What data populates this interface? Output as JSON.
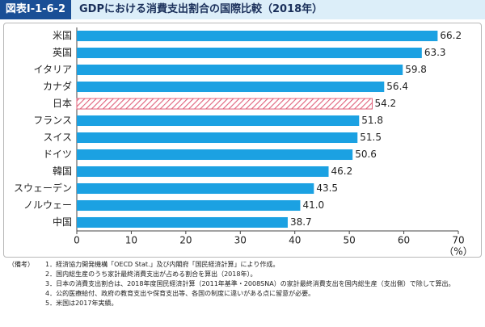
{
  "chart_data": {
    "type": "hbar",
    "figure_label": "図表Ⅰ-1-6-2",
    "title": "GDPにおける消費支出割合の国際比較（2018年）",
    "categories": [
      "米国",
      "英国",
      "イタリア",
      "カナダ",
      "日本",
      "フランス",
      "スイス",
      "ドイツ",
      "韓国",
      "スウェーデン",
      "ノルウェー",
      "中国"
    ],
    "values": [
      66.2,
      63.3,
      59.8,
      56.4,
      54.2,
      51.8,
      51.5,
      50.6,
      46.2,
      43.5,
      41.0,
      38.7
    ],
    "value_labels": [
      "66.2",
      "63.3",
      "59.8",
      "56.4",
      "54.2",
      "51.8",
      "51.5",
      "50.6",
      "46.2",
      "43.5",
      "41.0",
      "38.7"
    ],
    "color": "#1ba1e2",
    "highlight_index": 4,
    "highlight_color": "#e0607a",
    "xlim": [
      0,
      70
    ],
    "xticks": [
      0,
      10,
      20,
      30,
      40,
      50,
      60,
      70
    ],
    "xlabel": "（%）",
    "grid": false,
    "notes_heading": "（備考）",
    "notes": [
      "1．経済協力開発機構「OECD Stat.」及び内閣府「国民経済計算」により作成。",
      "2．国内総生産のうち家計最終消費支出が占める割合を算出（2018年）。",
      "3．日本の消費支出割合は、2018年度国民経済計算（2011年基準・2008SNA）の家計最終消費支出を国内総生産（支出側）で除して算出。",
      "4．公的医療給付、政府の教育支出や保育支出等、各国の制度に違いがある点に留意が必要。",
      "5．米国は2017年実績。"
    ]
  }
}
